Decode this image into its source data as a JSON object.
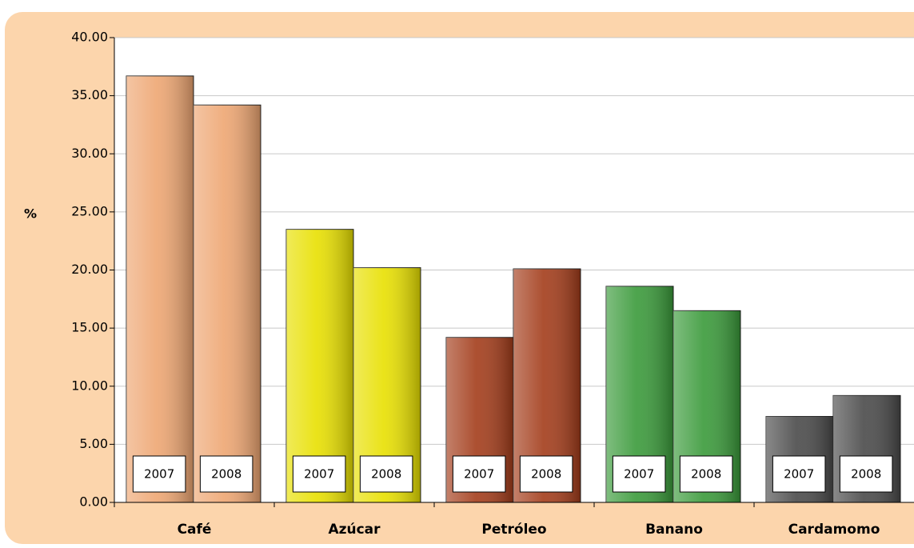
{
  "chart_data": {
    "type": "bar",
    "ylabel": "%",
    "categories": [
      "Café",
      "Azúcar",
      "Petróleo",
      "Banano",
      "Cardamomo"
    ],
    "colors": [
      "#eea672",
      "#e8e000",
      "#a33c1a",
      "#3a9a3a",
      "#4a4a4a"
    ],
    "series": [
      {
        "name": "2007",
        "values": [
          36.7,
          23.5,
          14.2,
          18.6,
          7.4
        ]
      },
      {
        "name": "2008",
        "values": [
          34.2,
          20.2,
          20.1,
          16.5,
          9.2
        ]
      }
    ],
    "ylim": [
      0,
      40
    ],
    "yticks": [
      {
        "value": 0,
        "label": "0.00"
      },
      {
        "value": 5,
        "label": "5.00"
      },
      {
        "value": 10,
        "label": "10.00"
      },
      {
        "value": 15,
        "label": "15.00"
      },
      {
        "value": 20,
        "label": "20.00"
      },
      {
        "value": 25,
        "label": "25.00"
      },
      {
        "value": 30,
        "label": "30.00"
      },
      {
        "value": 35,
        "label": "35.00"
      },
      {
        "value": 40,
        "label": "40.00"
      }
    ],
    "grid": true
  }
}
